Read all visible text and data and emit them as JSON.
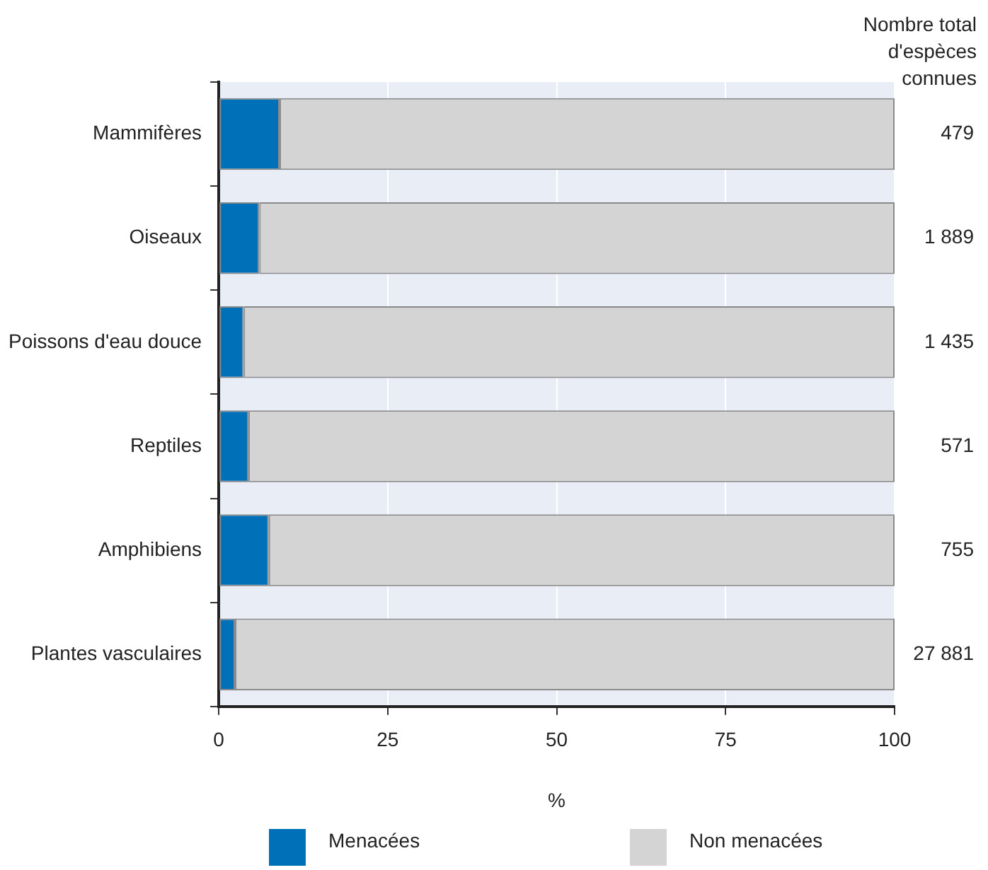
{
  "chart_data": {
    "type": "bar",
    "orientation": "horizontal",
    "stacked": true,
    "categories": [
      "Mammifères",
      "Oiseaux",
      "Poissons d'eau douce",
      "Reptiles",
      "Amphibiens",
      "Plantes vasculaires"
    ],
    "series": [
      {
        "name": "Menacées",
        "color": "#0070b8",
        "values": [
          9.0,
          6.0,
          3.7,
          4.4,
          7.4,
          2.4
        ]
      },
      {
        "name": "Non menacées",
        "color": "#d4d4d4",
        "values": [
          91.0,
          94.0,
          96.3,
          95.6,
          92.6,
          97.6
        ]
      }
    ],
    "xlabel": "%",
    "xlim": [
      0,
      100
    ],
    "xticks": [
      0,
      25,
      50,
      75,
      100
    ],
    "grid": "x",
    "legend": "bottom",
    "annotations": [
      "Nombre total d'espèces connues",
      "479",
      "1 889",
      "1 435",
      "571",
      "755",
      "27 881"
    ]
  }
}
